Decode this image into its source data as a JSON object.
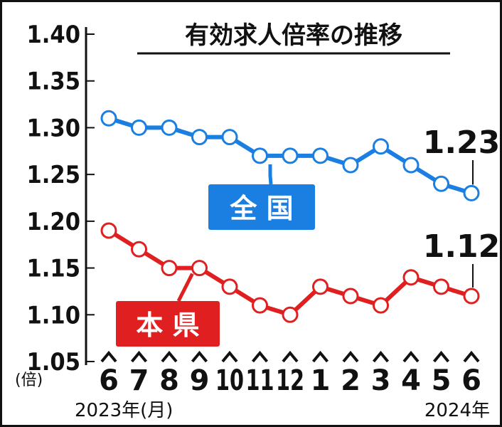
{
  "chart_data": {
    "type": "line",
    "title": "有効求人倍率の推移",
    "unit_label": "(倍)",
    "categories": [
      "6",
      "7",
      "8",
      "9",
      "10",
      "11",
      "12",
      "1",
      "2",
      "3",
      "4",
      "5",
      "6"
    ],
    "year_start_label": "2023年(月)",
    "year_end_label": "2024年",
    "y_ticks": [
      "1.40",
      "1.35",
      "1.30",
      "1.25",
      "1.20",
      "1.15",
      "1.10",
      "1.05"
    ],
    "ylim": [
      1.05,
      1.4
    ],
    "grid": false,
    "series": [
      {
        "name": "全 国",
        "color": "#1a7fe0",
        "values": [
          1.31,
          1.3,
          1.3,
          1.29,
          1.29,
          1.27,
          1.27,
          1.27,
          1.26,
          1.28,
          1.26,
          1.24,
          1.23
        ],
        "end_label": "1.23"
      },
      {
        "name": "本 県",
        "color": "#e02020",
        "values": [
          1.19,
          1.17,
          1.15,
          1.15,
          1.13,
          1.11,
          1.1,
          1.13,
          1.12,
          1.11,
          1.14,
          1.13,
          1.12
        ],
        "end_label": "1.12"
      }
    ]
  }
}
